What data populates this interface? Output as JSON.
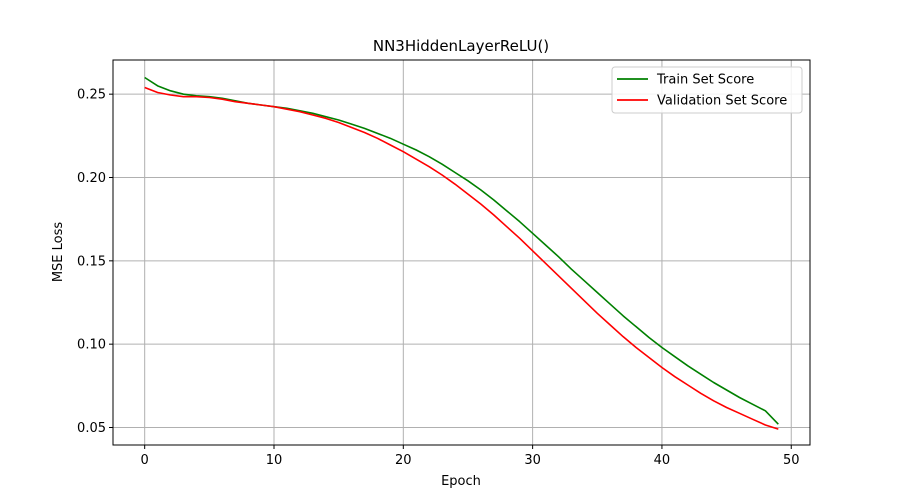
{
  "chart_data": {
    "type": "line",
    "title": "NN3HiddenLayerReLU()",
    "xlabel": "Epoch",
    "ylabel": "MSE Loss",
    "xlim": [
      -2.45,
      51.45
    ],
    "ylim": [
      0.0395,
      0.2705
    ],
    "xticks": [
      0,
      10,
      20,
      30,
      40,
      50
    ],
    "yticks": [
      0.05,
      0.1,
      0.15,
      0.2,
      0.25
    ],
    "xtick_labels": [
      "0",
      "10",
      "20",
      "30",
      "40",
      "50"
    ],
    "ytick_labels": [
      "0.05",
      "0.10",
      "0.15",
      "0.20",
      "0.25"
    ],
    "grid": true,
    "legend_position": "top-right",
    "x": [
      0,
      1,
      2,
      3,
      4,
      5,
      6,
      7,
      8,
      9,
      10,
      11,
      12,
      13,
      14,
      15,
      16,
      17,
      18,
      19,
      20,
      21,
      22,
      23,
      24,
      25,
      26,
      27,
      28,
      29,
      30,
      31,
      32,
      33,
      34,
      35,
      36,
      37,
      38,
      39,
      40,
      41,
      42,
      43,
      44,
      45,
      46,
      47,
      48,
      49
    ],
    "series": [
      {
        "name": "Train Set Score",
        "color": "#008000",
        "values": [
          0.26,
          0.255,
          0.252,
          0.25,
          0.249,
          0.2485,
          0.2475,
          0.246,
          0.2445,
          0.2435,
          0.2425,
          0.2415,
          0.24,
          0.2385,
          0.2365,
          0.2345,
          0.232,
          0.2295,
          0.2265,
          0.2235,
          0.22,
          0.2165,
          0.2125,
          0.208,
          0.203,
          0.198,
          0.1925,
          0.1865,
          0.18,
          0.1735,
          0.1665,
          0.1595,
          0.1525,
          0.145,
          0.138,
          0.131,
          0.124,
          0.117,
          0.1105,
          0.104,
          0.098,
          0.0925,
          0.087,
          0.082,
          0.077,
          0.0725,
          0.068,
          0.064,
          0.06,
          0.052
        ]
      },
      {
        "name": "Validation Set Score",
        "color": "#ff0000",
        "values": [
          0.254,
          0.251,
          0.2495,
          0.2485,
          0.2485,
          0.248,
          0.247,
          0.2455,
          0.2445,
          0.2435,
          0.2425,
          0.241,
          0.2395,
          0.2375,
          0.2355,
          0.233,
          0.23,
          0.227,
          0.2235,
          0.2195,
          0.2155,
          0.211,
          0.2065,
          0.2015,
          0.196,
          0.19,
          0.184,
          0.1775,
          0.1705,
          0.1635,
          0.156,
          0.1485,
          0.141,
          0.1335,
          0.126,
          0.1185,
          0.1115,
          0.1045,
          0.098,
          0.092,
          0.086,
          0.0805,
          0.0755,
          0.0705,
          0.066,
          0.062,
          0.0585,
          0.055,
          0.0515,
          0.049
        ]
      }
    ]
  }
}
